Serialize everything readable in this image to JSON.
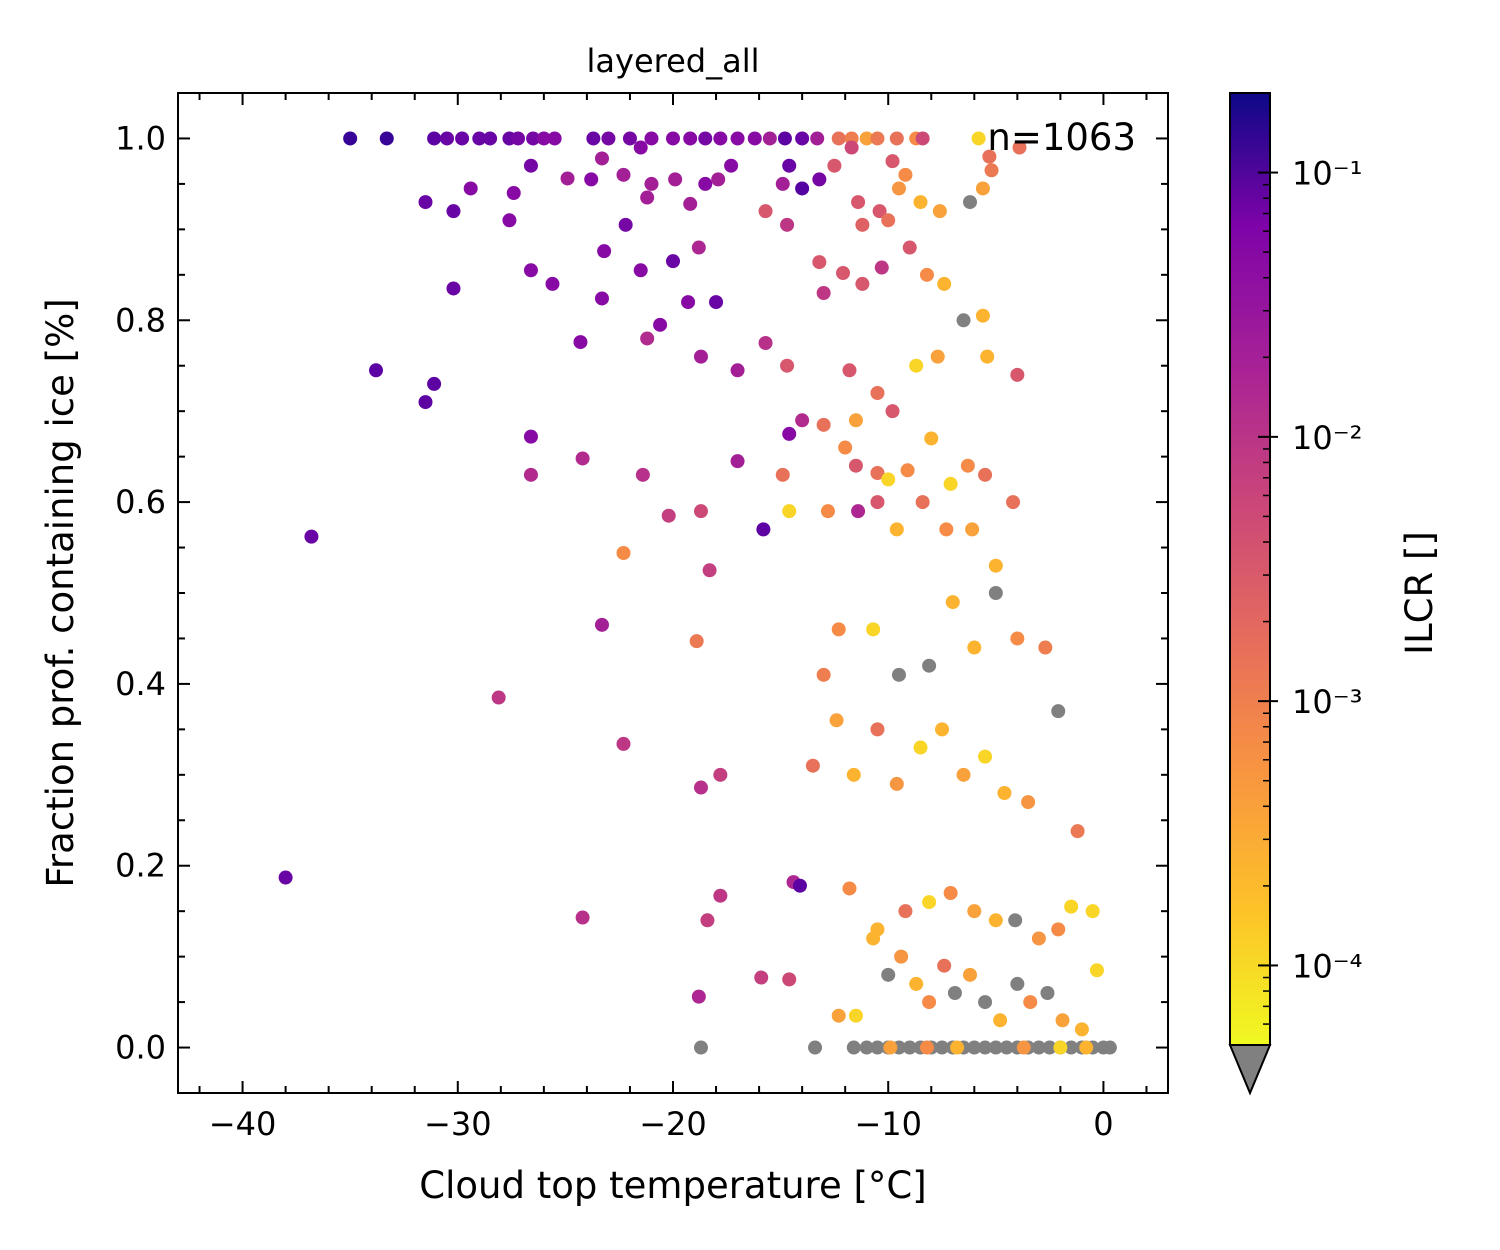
{
  "chart_data": {
    "type": "scatter",
    "title": "layered_all",
    "xlabel": "Cloud top temperature [°C]",
    "ylabel": "Fraction prof. containing ice [%]",
    "annotation": "n=1063",
    "xlim": [
      -43,
      3
    ],
    "ylim": [
      -0.05,
      1.05
    ],
    "x_ticks": [
      -40,
      -30,
      -20,
      -10,
      0
    ],
    "x_tick_labels": [
      "−40",
      "−30",
      "−20",
      "−10",
      "0"
    ],
    "y_ticks": [
      0.0,
      0.2,
      0.4,
      0.6,
      0.8,
      1.0
    ],
    "y_tick_labels": [
      "0.0",
      "0.2",
      "0.4",
      "0.6",
      "0.8",
      "1.0"
    ],
    "colorbar": {
      "label": "ILCR []",
      "scale": "log",
      "range": [
        5e-05,
        0.2
      ],
      "tick_values": [
        0.0001,
        0.001,
        0.01,
        0.1
      ],
      "tick_labels": [
        "10⁻⁴",
        "10⁻³",
        "10⁻²",
        "10⁻¹"
      ],
      "colormap": "plasma",
      "under_color": "#808080",
      "extend": "min"
    },
    "points": [
      [
        -35.0,
        1.0,
        0.1
      ],
      [
        -33.3,
        1.0,
        0.1
      ],
      [
        -31.1,
        1.0,
        0.05
      ],
      [
        -30.5,
        1.0,
        0.04
      ],
      [
        -29.8,
        1.0,
        0.04
      ],
      [
        -29.0,
        1.0,
        0.04
      ],
      [
        -28.5,
        1.0,
        0.04
      ],
      [
        -27.6,
        1.0,
        0.04
      ],
      [
        -27.2,
        1.0,
        0.03
      ],
      [
        -26.5,
        1.0,
        0.03
      ],
      [
        -26.0,
        1.0,
        0.02
      ],
      [
        -25.5,
        1.0,
        0.02
      ],
      [
        -23.7,
        1.0,
        0.04
      ],
      [
        -23.0,
        1.0,
        0.03
      ],
      [
        -22.0,
        1.0,
        0.03
      ],
      [
        -21.0,
        1.0,
        0.02
      ],
      [
        -20.0,
        1.0,
        0.02
      ],
      [
        -19.2,
        1.0,
        0.02
      ],
      [
        -18.5,
        1.0,
        0.03
      ],
      [
        -17.8,
        1.0,
        0.02
      ],
      [
        -17.0,
        1.0,
        0.02
      ],
      [
        -16.2,
        1.0,
        0.02
      ],
      [
        -15.5,
        1.0,
        0.01
      ],
      [
        -14.8,
        1.0,
        0.05
      ],
      [
        -14.0,
        1.0,
        0.04
      ],
      [
        -13.3,
        1.0,
        0.01
      ],
      [
        -12.3,
        1.0,
        0.001
      ],
      [
        -11.7,
        1.0,
        0.0007
      ],
      [
        -11.0,
        1.0,
        0.0003
      ],
      [
        -10.5,
        1.0,
        0.0008
      ],
      [
        -9.6,
        1.0,
        0.001
      ],
      [
        -8.7,
        1.0,
        0.0005
      ],
      [
        -8.4,
        1.0,
        0.003
      ],
      [
        -5.8,
        1.0,
        0.0001
      ],
      [
        -26.6,
        0.97,
        0.03
      ],
      [
        -23.3,
        0.978,
        0.01
      ],
      [
        -21.5,
        0.99,
        0.02
      ],
      [
        -17.3,
        0.97,
        0.02
      ],
      [
        -14.6,
        0.97,
        0.04
      ],
      [
        -12.5,
        0.97,
        0.002
      ],
      [
        -11.7,
        0.99,
        0.003
      ],
      [
        -9.8,
        0.975,
        0.002
      ],
      [
        -9.2,
        0.96,
        0.0005
      ],
      [
        -5.3,
        0.98,
        0.001
      ],
      [
        -3.9,
        0.99,
        0.001
      ],
      [
        -31.5,
        0.93,
        0.04
      ],
      [
        -30.2,
        0.92,
        0.04
      ],
      [
        -29.4,
        0.945,
        0.02
      ],
      [
        -27.4,
        0.94,
        0.02
      ],
      [
        -27.6,
        0.91,
        0.02
      ],
      [
        -24.9,
        0.956,
        0.01
      ],
      [
        -23.8,
        0.955,
        0.02
      ],
      [
        -22.3,
        0.96,
        0.01
      ],
      [
        -21.0,
        0.95,
        0.01
      ],
      [
        -19.9,
        0.955,
        0.01
      ],
      [
        -18.5,
        0.95,
        0.02
      ],
      [
        -17.9,
        0.955,
        0.01
      ],
      [
        -14.9,
        0.95,
        0.01
      ],
      [
        -14.0,
        0.945,
        0.06
      ],
      [
        -13.2,
        0.955,
        0.03
      ],
      [
        -11.4,
        0.93,
        0.002
      ],
      [
        -10.4,
        0.92,
        0.002
      ],
      [
        -8.5,
        0.93,
        0.0002
      ],
      [
        -7.6,
        0.92,
        0.0003
      ],
      [
        -5.6,
        0.945,
        0.0003
      ],
      [
        -5.2,
        0.965,
        0.0008
      ],
      [
        -6.2,
        0.93,
        -1
      ],
      [
        -9.5,
        0.945,
        0.0004
      ],
      [
        -21.2,
        0.935,
        0.01
      ],
      [
        -22.2,
        0.905,
        0.03
      ],
      [
        -19.2,
        0.928,
        0.01
      ],
      [
        -15.7,
        0.92,
        0.002
      ],
      [
        -14.7,
        0.905,
        0.005
      ],
      [
        -11.2,
        0.905,
        0.0015
      ],
      [
        -10.0,
        0.91,
        0.001
      ],
      [
        -25.6,
        0.84,
        0.02
      ],
      [
        -23.2,
        0.876,
        0.02
      ],
      [
        -21.5,
        0.855,
        0.02
      ],
      [
        -20.0,
        0.865,
        0.04
      ],
      [
        -18.8,
        0.88,
        0.008
      ],
      [
        -18.0,
        0.82,
        0.04
      ],
      [
        -13.2,
        0.864,
        0.002
      ],
      [
        -12.1,
        0.852,
        0.002
      ],
      [
        -11.2,
        0.84,
        0.002
      ],
      [
        -10.3,
        0.858,
        0.005
      ],
      [
        -9.0,
        0.88,
        0.002
      ],
      [
        -8.2,
        0.85,
        0.0005
      ],
      [
        -7.4,
        0.84,
        0.0002
      ],
      [
        -5.6,
        0.805,
        0.0002
      ],
      [
        -26.6,
        0.855,
        0.02
      ],
      [
        -30.2,
        0.835,
        0.04
      ],
      [
        -23.3,
        0.824,
        0.02
      ],
      [
        -19.3,
        0.82,
        0.02
      ],
      [
        -20.6,
        0.795,
        0.02
      ],
      [
        -21.2,
        0.78,
        0.007
      ],
      [
        -17.0,
        0.745,
        0.01
      ],
      [
        -15.7,
        0.775,
        0.006
      ],
      [
        -14.7,
        0.75,
        0.002
      ],
      [
        -13.0,
        0.83,
        0.005
      ],
      [
        -11.8,
        0.745,
        0.002
      ],
      [
        -11.5,
        0.69,
        0.0003
      ],
      [
        -10.5,
        0.72,
        0.001
      ],
      [
        -9.8,
        0.7,
        0.002
      ],
      [
        -8.7,
        0.75,
        0.0001
      ],
      [
        -7.7,
        0.76,
        0.0003
      ],
      [
        -6.5,
        0.8,
        -1
      ],
      [
        -5.4,
        0.76,
        0.0002
      ],
      [
        -4.0,
        0.74,
        0.002
      ],
      [
        -33.8,
        0.745,
        0.05
      ],
      [
        -31.1,
        0.73,
        0.05
      ],
      [
        -31.5,
        0.71,
        0.05
      ],
      [
        -26.6,
        0.672,
        0.02
      ],
      [
        -24.3,
        0.776,
        0.02
      ],
      [
        -18.7,
        0.76,
        0.01
      ],
      [
        -14.6,
        0.675,
        0.02
      ],
      [
        -14.0,
        0.69,
        0.007
      ],
      [
        -13.0,
        0.685,
        0.001
      ],
      [
        -12.0,
        0.66,
        0.0005
      ],
      [
        -11.5,
        0.64,
        0.002
      ],
      [
        -10.5,
        0.632,
        0.001
      ],
      [
        -10.0,
        0.625,
        0.0001
      ],
      [
        -9.1,
        0.635,
        0.0005
      ],
      [
        -8.0,
        0.67,
        0.0002
      ],
      [
        -7.1,
        0.62,
        0.0001
      ],
      [
        -6.3,
        0.64,
        0.0005
      ],
      [
        -5.5,
        0.63,
        0.001
      ],
      [
        -24.2,
        0.648,
        0.007
      ],
      [
        -26.6,
        0.63,
        0.007
      ],
      [
        -21.4,
        0.63,
        0.006
      ],
      [
        -17.0,
        0.645,
        0.01
      ],
      [
        -14.9,
        0.63,
        0.001
      ],
      [
        -12.8,
        0.59,
        0.0005
      ],
      [
        -11.4,
        0.59,
        0.008
      ],
      [
        -10.5,
        0.6,
        0.002
      ],
      [
        -9.6,
        0.57,
        0.0002
      ],
      [
        -8.4,
        0.6,
        0.001
      ],
      [
        -7.3,
        0.57,
        0.0005
      ],
      [
        -6.1,
        0.57,
        0.0003
      ],
      [
        -5.0,
        0.53,
        0.0002
      ],
      [
        -4.2,
        0.6,
        0.001
      ],
      [
        -20.2,
        0.585,
        0.004
      ],
      [
        -18.7,
        0.59,
        0.003
      ],
      [
        -15.8,
        0.57,
        0.05
      ],
      [
        -14.6,
        0.59,
        0.0001
      ],
      [
        -22.3,
        0.544,
        0.0005
      ],
      [
        -18.3,
        0.525,
        0.004
      ],
      [
        -23.3,
        0.465,
        0.01
      ],
      [
        -18.9,
        0.447,
        0.0008
      ],
      [
        -13.0,
        0.41,
        0.0007
      ],
      [
        -12.3,
        0.46,
        0.0005
      ],
      [
        -10.7,
        0.46,
        0.0001
      ],
      [
        -9.5,
        0.41,
        -1
      ],
      [
        -8.1,
        0.42,
        -1
      ],
      [
        -7.0,
        0.49,
        0.0002
      ],
      [
        -6.0,
        0.44,
        0.0002
      ],
      [
        -5.0,
        0.5,
        -1
      ],
      [
        -4.0,
        0.45,
        0.0005
      ],
      [
        -2.7,
        0.44,
        0.0007
      ],
      [
        -28.1,
        0.385,
        0.005
      ],
      [
        -22.3,
        0.334,
        0.005
      ],
      [
        -17.8,
        0.3,
        0.004
      ],
      [
        -18.7,
        0.286,
        0.006
      ],
      [
        -13.5,
        0.31,
        0.001
      ],
      [
        -12.4,
        0.36,
        0.0003
      ],
      [
        -11.6,
        0.3,
        0.0002
      ],
      [
        -10.5,
        0.35,
        0.001
      ],
      [
        -9.6,
        0.29,
        0.0004
      ],
      [
        -8.5,
        0.33,
        0.0001
      ],
      [
        -7.5,
        0.35,
        0.0002
      ],
      [
        -6.5,
        0.3,
        0.0003
      ],
      [
        -5.5,
        0.32,
        0.0001
      ],
      [
        -4.6,
        0.28,
        0.0002
      ],
      [
        -3.5,
        0.27,
        0.0004
      ],
      [
        -2.1,
        0.37,
        -1
      ],
      [
        -38.0,
        0.187,
        0.04
      ],
      [
        -36.8,
        0.562,
        0.04
      ],
      [
        -14.4,
        0.182,
        0.008
      ],
      [
        -14.1,
        0.178,
        0.05
      ],
      [
        -17.8,
        0.167,
        0.005
      ],
      [
        -24.2,
        0.143,
        0.006
      ],
      [
        -18.4,
        0.14,
        0.004
      ],
      [
        -15.9,
        0.077,
        0.004
      ],
      [
        -14.6,
        0.075,
        0.003
      ],
      [
        -18.8,
        0.056,
        0.008
      ],
      [
        -11.8,
        0.175,
        0.0005
      ],
      [
        -10.5,
        0.13,
        0.0002
      ],
      [
        -9.2,
        0.15,
        0.001
      ],
      [
        -8.1,
        0.16,
        0.0001
      ],
      [
        -7.1,
        0.17,
        0.0005
      ],
      [
        -6.0,
        0.15,
        0.0003
      ],
      [
        -5.0,
        0.14,
        0.0002
      ],
      [
        -4.1,
        0.14,
        -1
      ],
      [
        -3.0,
        0.12,
        0.0004
      ],
      [
        -2.1,
        0.13,
        0.0005
      ],
      [
        -1.5,
        0.155,
        0.0001
      ],
      [
        -0.5,
        0.15,
        0.0001
      ],
      [
        -1.2,
        0.238,
        0.0008
      ],
      [
        -12.3,
        0.035,
        0.0003
      ],
      [
        -11.5,
        0.035,
        0.0001
      ],
      [
        -10.7,
        0.12,
        0.0002
      ],
      [
        -10.0,
        0.08,
        -1
      ],
      [
        -9.4,
        0.1,
        0.0004
      ],
      [
        -8.7,
        0.07,
        0.0002
      ],
      [
        -8.1,
        0.05,
        0.0005
      ],
      [
        -7.4,
        0.09,
        0.001
      ],
      [
        -6.9,
        0.06,
        -1
      ],
      [
        -6.2,
        0.08,
        0.0003
      ],
      [
        -5.5,
        0.05,
        -1
      ],
      [
        -4.8,
        0.03,
        0.0002
      ],
      [
        -4.0,
        0.07,
        -1
      ],
      [
        -3.4,
        0.05,
        0.0005
      ],
      [
        -2.6,
        0.06,
        -1
      ],
      [
        -1.9,
        0.03,
        0.0003
      ],
      [
        -1.0,
        0.02,
        0.0002
      ],
      [
        -0.3,
        0.085,
        0.0001
      ],
      [
        -18.7,
        0.0,
        -1
      ],
      [
        -13.4,
        0.0,
        -1
      ],
      [
        -11.6,
        0.0,
        -1
      ],
      [
        -11.0,
        0.0,
        -1
      ],
      [
        -10.5,
        0.0,
        -1
      ],
      [
        -10.0,
        0.0,
        -1
      ],
      [
        -9.5,
        0.0,
        -1
      ],
      [
        -9.0,
        0.0,
        -1
      ],
      [
        -8.5,
        0.0,
        -1
      ],
      [
        -8.0,
        0.0,
        -1
      ],
      [
        -7.5,
        0.0,
        -1
      ],
      [
        -7.0,
        0.0,
        -1
      ],
      [
        -6.5,
        0.0,
        -1
      ],
      [
        -6.0,
        0.0,
        -1
      ],
      [
        -5.5,
        0.0,
        -1
      ],
      [
        -5.0,
        0.0,
        -1
      ],
      [
        -4.5,
        0.0,
        -1
      ],
      [
        -4.0,
        0.0,
        -1
      ],
      [
        -3.5,
        0.0,
        -1
      ],
      [
        -3.0,
        0.0,
        -1
      ],
      [
        -2.5,
        0.0,
        -1
      ],
      [
        -2.0,
        0.0,
        -1
      ],
      [
        -1.5,
        0.0,
        -1
      ],
      [
        -1.0,
        0.0,
        -1
      ],
      [
        -0.5,
        0.0,
        -1
      ],
      [
        0.0,
        0.0,
        -1
      ],
      [
        0.3,
        0.0,
        -1
      ],
      [
        -9.9,
        0.0,
        0.0003
      ],
      [
        -8.2,
        0.0,
        0.0005
      ],
      [
        -6.8,
        0.0,
        0.0002
      ],
      [
        -3.7,
        0.0,
        0.0004
      ],
      [
        -2.0,
        0.0,
        0.0001
      ],
      [
        -0.8,
        0.0,
        0.0002
      ]
    ]
  }
}
